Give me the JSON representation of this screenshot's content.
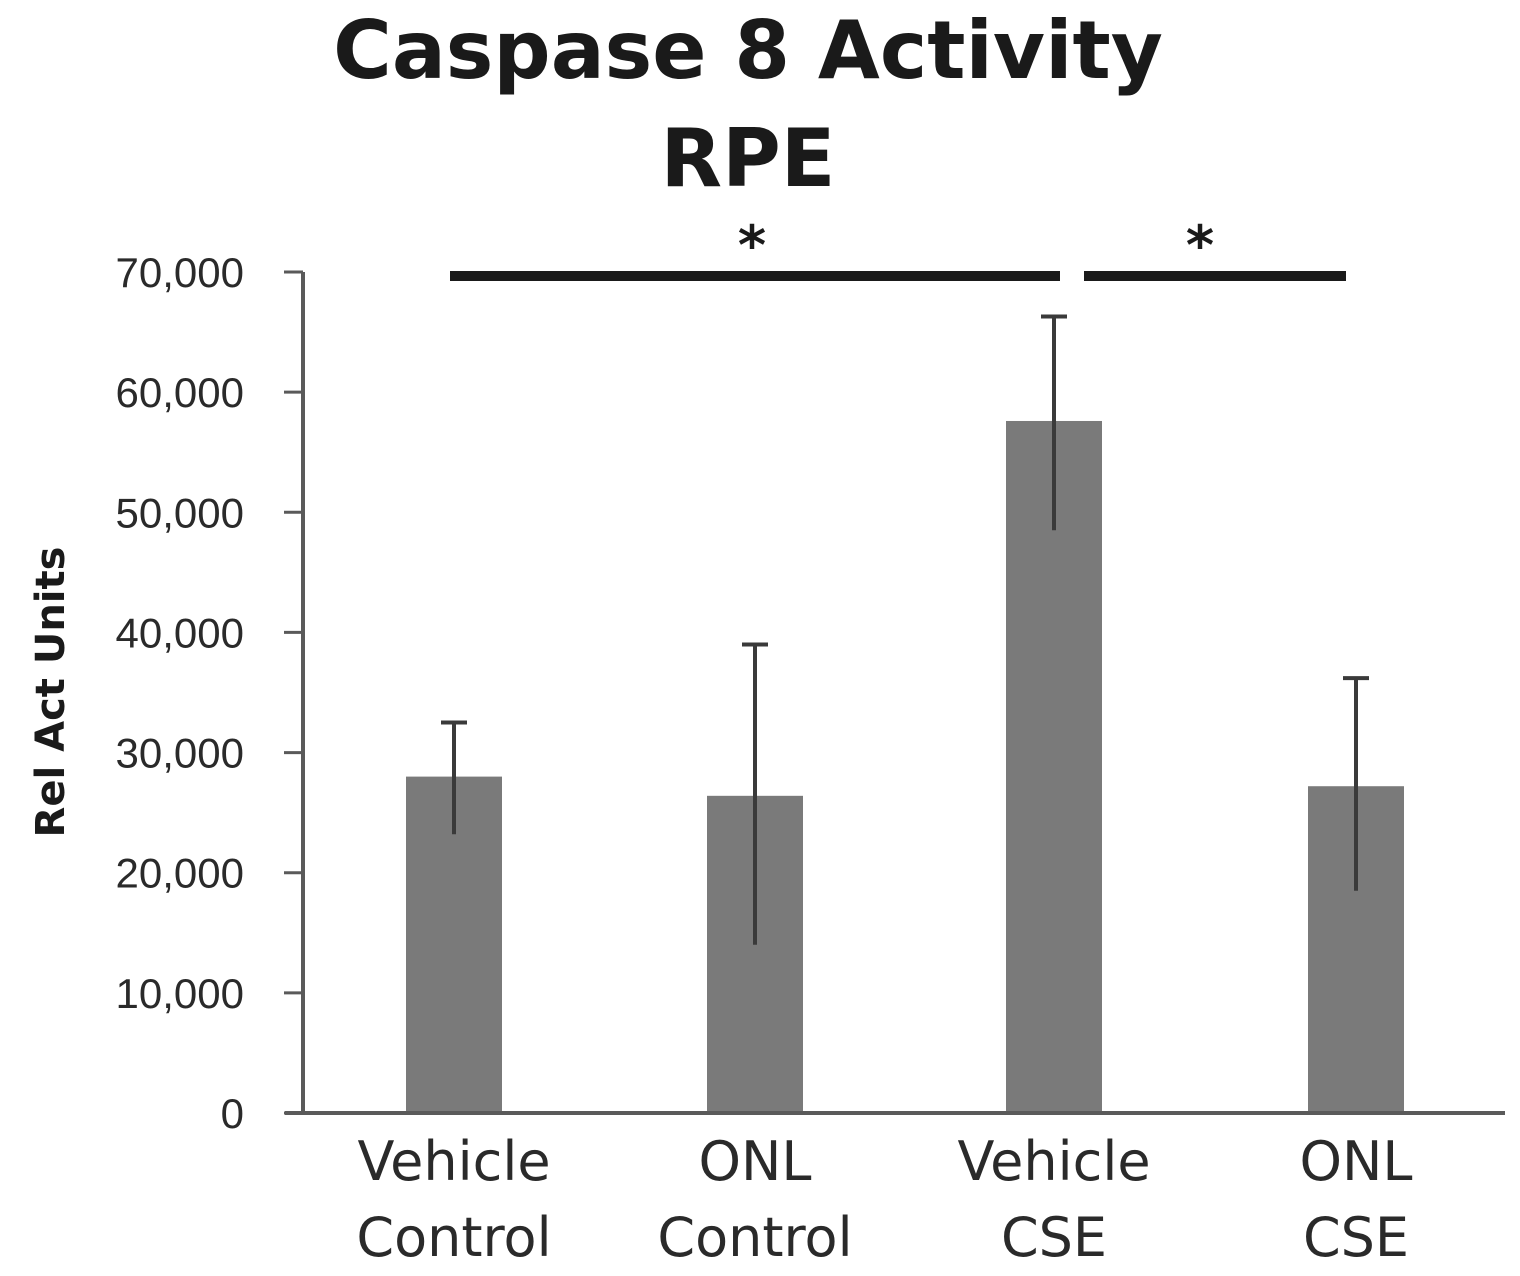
{
  "chart_data": {
    "type": "bar",
    "title": "Caspase 8 Activity",
    "subtitle": "RPE",
    "xlabel": "",
    "ylabel": "Rel Act Units",
    "ylim": [
      0,
      70000
    ],
    "yticks": [
      0,
      10000,
      20000,
      30000,
      40000,
      50000,
      60000,
      70000
    ],
    "ytick_labels": [
      "0",
      "10,000",
      "20,000",
      "30,000",
      "40,000",
      "50,000",
      "60,000",
      "70,000"
    ],
    "categories": [
      {
        "line1": "Vehicle",
        "line2": "Control"
      },
      {
        "line1": "ONL",
        "line2": "Control"
      },
      {
        "line1": "Vehicle",
        "line2": "CSE"
      },
      {
        "line1": "ONL",
        "line2": "CSE"
      }
    ],
    "values": [
      28000,
      26400,
      57600,
      27200
    ],
    "error_upper": [
      32500,
      39000,
      66300,
      36200
    ],
    "error_lower": [
      23200,
      14000,
      48500,
      18500
    ],
    "significance": [
      {
        "from": 0,
        "to": 2,
        "label": "*"
      },
      {
        "from": 2,
        "to": 3,
        "label": "*"
      }
    ],
    "bar_color": "#7a7a7a",
    "grid": false
  }
}
